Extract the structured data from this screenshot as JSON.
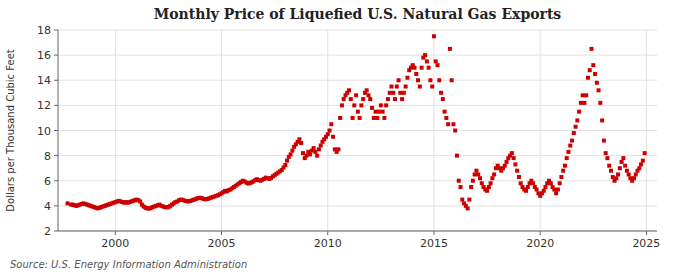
{
  "chart_data": {
    "type": "scatter",
    "title": "Monthly Price of Liquefied U.S. Natural Gas Exports",
    "ylabel": "Dollars per Thousand Cubic Feet",
    "source": "Source: U.S. Energy Information Administration",
    "color": "#cc0000",
    "marker": "square",
    "grid": true,
    "xlim": [
      1997.3,
      2025.5
    ],
    "xticks": [
      2000,
      2005,
      2010,
      2015,
      2020,
      2025
    ],
    "ylim": [
      2,
      18
    ],
    "yticks": [
      2,
      4,
      6,
      8,
      10,
      12,
      14,
      16,
      18
    ],
    "x": [
      1997.75,
      1997.917,
      1998.0,
      1998.083,
      1998.167,
      1998.25,
      1998.333,
      1998.417,
      1998.5,
      1998.583,
      1998.667,
      1998.75,
      1998.833,
      1998.917,
      1999.0,
      1999.083,
      1999.167,
      1999.25,
      1999.333,
      1999.417,
      1999.5,
      1999.583,
      1999.667,
      1999.75,
      1999.833,
      1999.917,
      2000.0,
      2000.083,
      2000.167,
      2000.25,
      2000.333,
      2000.417,
      2000.5,
      2000.583,
      2000.667,
      2000.75,
      2000.833,
      2000.917,
      2001.0,
      2001.083,
      2001.167,
      2001.25,
      2001.333,
      2001.417,
      2001.5,
      2001.583,
      2001.667,
      2001.75,
      2001.833,
      2001.917,
      2002.0,
      2002.083,
      2002.167,
      2002.25,
      2002.333,
      2002.417,
      2002.5,
      2002.583,
      2002.667,
      2002.75,
      2002.833,
      2002.917,
      2003.0,
      2003.083,
      2003.167,
      2003.25,
      2003.333,
      2003.417,
      2003.5,
      2003.583,
      2003.667,
      2003.75,
      2003.833,
      2003.917,
      2004.0,
      2004.083,
      2004.167,
      2004.25,
      2004.333,
      2004.417,
      2004.5,
      2004.583,
      2004.667,
      2004.75,
      2004.833,
      2004.917,
      2005.0,
      2005.083,
      2005.167,
      2005.25,
      2005.333,
      2005.417,
      2005.5,
      2005.583,
      2005.667,
      2005.75,
      2005.833,
      2005.917,
      2006.0,
      2006.083,
      2006.167,
      2006.25,
      2006.333,
      2006.417,
      2006.5,
      2006.583,
      2006.667,
      2006.75,
      2006.833,
      2006.917,
      2007.0,
      2007.083,
      2007.167,
      2007.25,
      2007.333,
      2007.417,
      2007.5,
      2007.583,
      2007.667,
      2007.75,
      2007.833,
      2007.917,
      2008.0,
      2008.083,
      2008.167,
      2008.25,
      2008.333,
      2008.417,
      2008.5,
      2008.583,
      2008.667,
      2008.75,
      2008.833,
      2008.917,
      2009.0,
      2009.083,
      2009.167,
      2009.25,
      2009.333,
      2009.417,
      2009.5,
      2009.583,
      2009.667,
      2009.75,
      2009.833,
      2009.917,
      2010.0,
      2010.083,
      2010.167,
      2010.25,
      2010.333,
      2010.417,
      2010.5,
      2010.583,
      2010.667,
      2010.75,
      2010.833,
      2010.917,
      2011.0,
      2011.083,
      2011.167,
      2011.25,
      2011.333,
      2011.417,
      2011.5,
      2011.583,
      2011.667,
      2011.75,
      2011.833,
      2011.917,
      2012.0,
      2012.083,
      2012.167,
      2012.25,
      2012.333,
      2012.417,
      2012.5,
      2012.583,
      2012.667,
      2012.75,
      2012.833,
      2012.917,
      2013.0,
      2013.083,
      2013.167,
      2013.25,
      2013.333,
      2013.417,
      2013.5,
      2013.583,
      2013.667,
      2013.75,
      2013.833,
      2013.917,
      2014.0,
      2014.083,
      2014.167,
      2014.25,
      2014.333,
      2014.417,
      2014.5,
      2014.583,
      2014.667,
      2014.75,
      2014.833,
      2014.917,
      2015.0,
      2015.083,
      2015.167,
      2015.25,
      2015.333,
      2015.417,
      2015.5,
      2015.583,
      2015.667,
      2015.75,
      2015.833,
      2015.917,
      2016.0,
      2016.083,
      2016.167,
      2016.25,
      2016.333,
      2016.417,
      2016.5,
      2016.583,
      2016.667,
      2016.75,
      2016.833,
      2016.917,
      2017.0,
      2017.083,
      2017.167,
      2017.25,
      2017.333,
      2017.417,
      2017.5,
      2017.583,
      2017.667,
      2017.75,
      2017.833,
      2017.917,
      2018.0,
      2018.083,
      2018.167,
      2018.25,
      2018.333,
      2018.417,
      2018.5,
      2018.583,
      2018.667,
      2018.75,
      2018.833,
      2018.917,
      2019.0,
      2019.083,
      2019.167,
      2019.25,
      2019.333,
      2019.417,
      2019.5,
      2019.583,
      2019.667,
      2019.75,
      2019.833,
      2019.917,
      2020.0,
      2020.083,
      2020.167,
      2020.25,
      2020.333,
      2020.417,
      2020.5,
      2020.583,
      2020.667,
      2020.75,
      2020.833,
      2020.917,
      2021.0,
      2021.083,
      2021.167,
      2021.25,
      2021.333,
      2021.417,
      2021.5,
      2021.583,
      2021.667,
      2021.75,
      2021.833,
      2021.917,
      2022.0,
      2022.083,
      2022.167,
      2022.25,
      2022.333,
      2022.417,
      2022.5,
      2022.583,
      2022.667,
      2022.75,
      2022.833,
      2022.917,
      2023.0,
      2023.083,
      2023.167,
      2023.25,
      2023.333,
      2023.417,
      2023.5,
      2023.583,
      2023.667,
      2023.75,
      2023.833,
      2023.917,
      2024.0,
      2024.083,
      2024.167,
      2024.25,
      2024.333,
      2024.417,
      2024.5,
      2024.583,
      2024.667,
      2024.75,
      2024.833,
      2024.917
    ],
    "values": [
      4.2,
      4.1,
      4.1,
      4.05,
      4.0,
      4.05,
      4.1,
      4.15,
      4.2,
      4.15,
      4.1,
      4.05,
      4.0,
      3.95,
      3.9,
      3.85,
      3.8,
      3.85,
      3.9,
      3.95,
      4.0,
      4.05,
      4.1,
      4.15,
      4.2,
      4.25,
      4.3,
      4.35,
      4.4,
      4.35,
      4.3,
      4.25,
      4.3,
      4.25,
      4.3,
      4.35,
      4.4,
      4.45,
      4.5,
      4.45,
      4.35,
      4.1,
      3.95,
      3.85,
      3.8,
      3.78,
      3.82,
      3.9,
      3.95,
      4.0,
      4.05,
      4.1,
      4.0,
      3.95,
      3.9,
      3.88,
      3.9,
      4.0,
      4.1,
      4.2,
      4.3,
      4.35,
      4.45,
      4.5,
      4.48,
      4.42,
      4.38,
      4.35,
      4.38,
      4.42,
      4.48,
      4.52,
      4.58,
      4.62,
      4.65,
      4.6,
      4.55,
      4.52,
      4.55,
      4.6,
      4.65,
      4.7,
      4.75,
      4.8,
      4.85,
      4.92,
      5.0,
      5.1,
      5.2,
      5.15,
      5.25,
      5.3,
      5.4,
      5.5,
      5.6,
      5.7,
      5.8,
      5.9,
      6.0,
      5.95,
      5.85,
      5.78,
      5.82,
      5.88,
      5.95,
      6.05,
      6.12,
      6.05,
      6.0,
      6.08,
      6.15,
      6.25,
      6.2,
      6.15,
      6.22,
      6.35,
      6.45,
      6.55,
      6.65,
      6.75,
      6.85,
      7.05,
      7.25,
      7.6,
      7.9,
      8.1,
      8.4,
      8.7,
      8.9,
      9.1,
      9.3,
      9.0,
      8.2,
      7.8,
      8.0,
      8.3,
      8.1,
      8.4,
      8.6,
      8.3,
      8.0,
      8.5,
      8.8,
      9.1,
      9.3,
      9.5,
      9.7,
      10.0,
      10.5,
      9.5,
      8.5,
      8.3,
      8.5,
      11.0,
      12.0,
      12.5,
      12.8,
      13.0,
      13.2,
      12.5,
      11.0,
      12.0,
      12.8,
      11.5,
      11.0,
      12.0,
      12.5,
      13.0,
      13.2,
      12.8,
      12.5,
      11.8,
      11.0,
      11.5,
      11.0,
      11.5,
      12.0,
      11.5,
      11.0,
      12.0,
      12.5,
      13.0,
      13.5,
      13.0,
      12.5,
      13.5,
      14.0,
      13.0,
      12.5,
      13.0,
      13.5,
      14.2,
      14.8,
      15.0,
      15.2,
      15.0,
      14.5,
      14.0,
      13.5,
      15.0,
      15.8,
      16.0,
      15.5,
      15.0,
      14.0,
      13.5,
      17.5,
      15.5,
      15.2,
      14.0,
      13.0,
      12.5,
      11.5,
      11.0,
      10.5,
      16.5,
      14.0,
      10.5,
      10.0,
      8.0,
      6.0,
      5.5,
      4.5,
      4.2,
      4.0,
      3.8,
      4.5,
      5.5,
      6.0,
      6.5,
      6.8,
      6.5,
      6.2,
      5.8,
      5.5,
      5.3,
      5.2,
      5.5,
      5.8,
      6.2,
      6.5,
      7.0,
      7.2,
      7.0,
      6.8,
      7.0,
      7.2,
      7.5,
      7.8,
      8.0,
      8.2,
      7.8,
      7.3,
      6.8,
      6.3,
      5.8,
      5.5,
      5.3,
      5.2,
      5.5,
      5.8,
      6.0,
      5.8,
      5.5,
      5.3,
      5.0,
      4.8,
      5.0,
      5.2,
      5.5,
      5.8,
      6.0,
      5.8,
      5.5,
      5.3,
      5.0,
      5.3,
      5.8,
      6.3,
      6.8,
      7.2,
      7.8,
      8.3,
      8.8,
      9.2,
      9.8,
      10.3,
      10.8,
      11.5,
      12.2,
      12.8,
      12.2,
      12.8,
      14.2,
      14.8,
      16.5,
      15.2,
      14.5,
      13.8,
      13.2,
      12.2,
      10.8,
      9.2,
      8.2,
      7.8,
      7.2,
      6.8,
      6.3,
      6.0,
      6.2,
      6.5,
      7.0,
      7.5,
      7.8,
      7.2,
      6.8,
      6.5,
      6.2,
      6.0,
      6.2,
      6.5,
      6.8,
      7.0,
      7.3,
      7.6,
      8.2
    ]
  }
}
